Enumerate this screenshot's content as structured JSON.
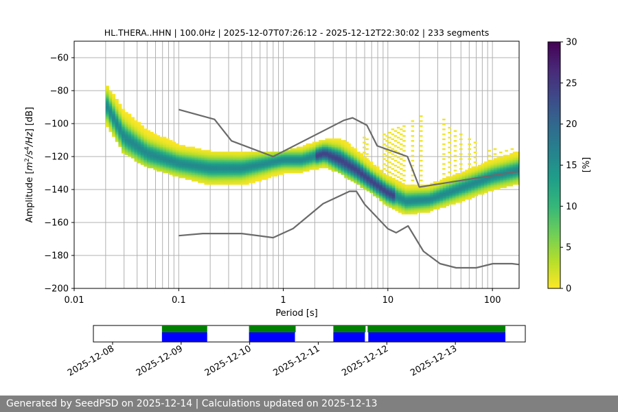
{
  "chart_data": {
    "type": "heatmap",
    "title": "HL.THERA..HHN | 100.0Hz | 2025-12-07T07:26:12 - 2025-12-12T22:30:02 | 233 segments",
    "xlabel": "Period [s]",
    "ylabel_prefix": "Amplitude [",
    "ylabel_suffix": "] [dB]",
    "ylabel_unit_parts": {
      "m": "m",
      "exp2": "2",
      "s": "/s",
      "exp4": "4",
      "hz": "/Hz"
    },
    "x_scale": "log",
    "xlim": [
      0.01,
      180
    ],
    "ylim": [
      -200,
      -50
    ],
    "xticks": [
      {
        "v": 0.01,
        "label": "0.01"
      },
      {
        "v": 0.1,
        "label": "0.1"
      },
      {
        "v": 1,
        "label": "1"
      },
      {
        "v": 10,
        "label": "10"
      },
      {
        "v": 100,
        "label": "100"
      }
    ],
    "yticks": [
      {
        "v": -60,
        "label": "−60"
      },
      {
        "v": -80,
        "label": "−80"
      },
      {
        "v": -100,
        "label": "−100"
      },
      {
        "v": -120,
        "label": "−120"
      },
      {
        "v": -140,
        "label": "−140"
      },
      {
        "v": -160,
        "label": "−160"
      },
      {
        "v": -180,
        "label": "−180"
      },
      {
        "v": -200,
        "label": "−200"
      }
    ],
    "grid": true,
    "colorbar": {
      "label": "[%]",
      "range": [
        0,
        30
      ],
      "ticks": [
        {
          "v": 0,
          "label": "0"
        },
        {
          "v": 5,
          "label": "5"
        },
        {
          "v": 10,
          "label": "10"
        },
        {
          "v": 15,
          "label": "15"
        },
        {
          "v": 20,
          "label": "20"
        },
        {
          "v": 25,
          "label": "25"
        },
        {
          "v": 30,
          "label": "30"
        }
      ],
      "colormap": [
        "#fde725",
        "#b5de2b",
        "#6ece58",
        "#35b779",
        "#1f9e89",
        "#26828e",
        "#31688e",
        "#3e4989",
        "#482878",
        "#440154"
      ]
    },
    "psd_band": {
      "mode": [
        [
          0.02,
          -88
        ],
        [
          0.03,
          -108
        ],
        [
          0.05,
          -118
        ],
        [
          0.1,
          -124
        ],
        [
          0.2,
          -127
        ],
        [
          0.4,
          -127
        ],
        [
          0.7,
          -124
        ],
        [
          1.0,
          -122
        ],
        [
          1.5,
          -122
        ],
        [
          2.5,
          -118
        ],
        [
          3.5,
          -122
        ],
        [
          5,
          -128
        ],
        [
          7,
          -135
        ],
        [
          10,
          -142
        ],
        [
          15,
          -147
        ],
        [
          25,
          -146
        ],
        [
          50,
          -139
        ],
        [
          100,
          -132
        ],
        [
          180,
          -128
        ]
      ],
      "upper": [
        [
          0.02,
          -76
        ],
        [
          0.03,
          -92
        ],
        [
          0.05,
          -104
        ],
        [
          0.1,
          -113
        ],
        [
          0.2,
          -117
        ],
        [
          0.4,
          -118
        ],
        [
          0.7,
          -117
        ],
        [
          1.0,
          -117
        ],
        [
          1.5,
          -114
        ],
        [
          2.5,
          -110
        ],
        [
          3.5,
          -109
        ],
        [
          5,
          -116
        ],
        [
          7,
          -124
        ],
        [
          10,
          -132
        ],
        [
          15,
          -138
        ],
        [
          25,
          -137
        ],
        [
          50,
          -130
        ],
        [
          100,
          -122
        ],
        [
          180,
          -117
        ]
      ],
      "lower": [
        [
          0.02,
          -100
        ],
        [
          0.03,
          -118
        ],
        [
          0.05,
          -126
        ],
        [
          0.1,
          -132
        ],
        [
          0.2,
          -137
        ],
        [
          0.4,
          -137
        ],
        [
          0.7,
          -133
        ],
        [
          1.0,
          -130
        ],
        [
          1.5,
          -129
        ],
        [
          2.5,
          -126
        ],
        [
          3.5,
          -130
        ],
        [
          5,
          -136
        ],
        [
          7,
          -142
        ],
        [
          10,
          -150
        ],
        [
          15,
          -155
        ],
        [
          25,
          -153
        ],
        [
          50,
          -147
        ],
        [
          100,
          -140
        ],
        [
          180,
          -136
        ]
      ],
      "sparse_upper": [
        [
          1.2,
          -117
        ],
        [
          1.8,
          -114
        ],
        [
          3,
          -111
        ],
        [
          8,
          -108
        ],
        [
          12,
          -103
        ],
        [
          20,
          -94
        ],
        [
          30,
          -95
        ],
        [
          45,
          -104
        ],
        [
          70,
          -112
        ],
        [
          120,
          -116
        ],
        [
          180,
          -115
        ]
      ]
    },
    "nhnm": {
      "x": [
        0.1,
        0.22,
        0.32,
        0.8,
        3.8,
        4.6,
        6.3,
        7.9,
        15.4,
        20,
        354.8
      ],
      "y": [
        -91.5,
        -97.4,
        -110.5,
        -120,
        -98,
        -96.5,
        -101,
        -113.5,
        -120,
        -138.5,
        -126
      ]
    },
    "nlnm": {
      "x": [
        0.1,
        0.17,
        0.4,
        0.8,
        1.24,
        2.4,
        4.3,
        5,
        6,
        10,
        12,
        15.6,
        21.9,
        31.6,
        45,
        70,
        101,
        154,
        178
      ],
      "y": [
        -168,
        -166.7,
        -166.7,
        -169.2,
        -163.7,
        -148.6,
        -141.1,
        -141.1,
        -149,
        -163.8,
        -166.2,
        -162.1,
        -177.5,
        -185,
        -187.5,
        -187.5,
        -185,
        -185,
        -185.5
      ]
    }
  },
  "timeline": {
    "date_labels": [
      "2025-12-08",
      "2025-12-09",
      "2025-12-10",
      "2025-12-11",
      "2025-12-12",
      "2025-12-13"
    ],
    "range_days": [
      -0.28,
      6.02
    ],
    "green_segments": [
      [
        0.72,
        1.38
      ],
      [
        1.99,
        2.67
      ],
      [
        3.22,
        3.69
      ],
      [
        3.72,
        7.0
      ]
    ],
    "blue_segments": [
      [
        0.72,
        1.38
      ],
      [
        1.99,
        2.66
      ],
      [
        3.22,
        3.68
      ],
      [
        3.73,
        5.99
      ],
      [
        6.01,
        6.98
      ]
    ],
    "colors": {
      "available": "#008000",
      "segments": "#0000ff"
    }
  },
  "footer": {
    "text": "Generated by SeedPSD on 2025-12-14 | Calculations updated on 2025-12-13"
  }
}
